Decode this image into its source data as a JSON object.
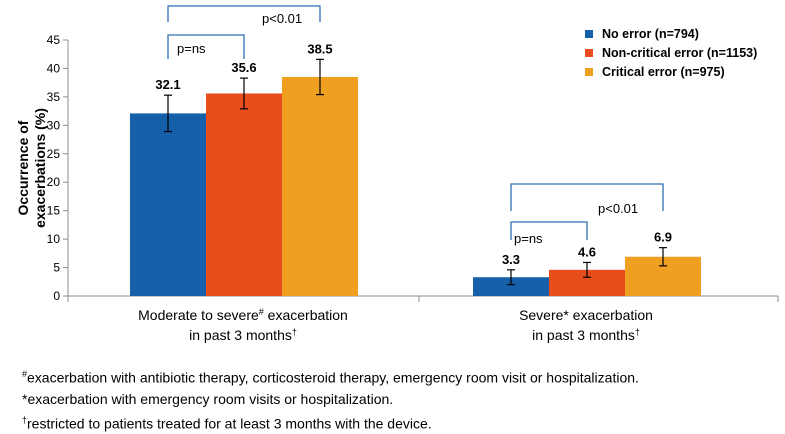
{
  "chart_data": {
    "type": "bar",
    "ylabel_lines": [
      "Occurrence of",
      "exacerbations (%)"
    ],
    "ylim": [
      0,
      45
    ],
    "yticks": [
      0,
      5,
      10,
      15,
      20,
      25,
      30,
      35,
      40,
      45
    ],
    "groups": [
      {
        "label_line1_pre": "Moderate to severe",
        "label_line1_sup": "#",
        "label_line1_post": " exacerbation",
        "label_line2": "in past 3 months",
        "label_line2_sup": "†"
      },
      {
        "label_line1_pre": "Severe* exacerbation",
        "label_line1_sup": "",
        "label_line1_post": "",
        "label_line2": "in past 3 months",
        "label_line2_sup": "†"
      }
    ],
    "series": [
      {
        "name": "No error (n=794)",
        "color": "#1560a8",
        "values": [
          32.1,
          3.3
        ],
        "labels": [
          "32.1",
          "3.3"
        ],
        "err": [
          3.2,
          1.3
        ]
      },
      {
        "name": "Non-critical error (n=1153)",
        "color": "#e84e1c",
        "values": [
          35.6,
          4.6
        ],
        "labels": [
          "35.6",
          "4.6"
        ],
        "err": [
          2.7,
          1.3
        ]
      },
      {
        "name": "Critical error (n=975)",
        "color": "#f0a020",
        "values": [
          38.5,
          6.9
        ],
        "labels": [
          "38.5",
          "6.9"
        ],
        "err": [
          3.1,
          1.6
        ]
      }
    ],
    "comparisons": [
      {
        "group": 0,
        "from": 0,
        "to": 1,
        "label": "p=ns"
      },
      {
        "group": 0,
        "from": 0,
        "to": 2,
        "label": "p<0.01"
      },
      {
        "group": 1,
        "from": 0,
        "to": 1,
        "label": "p=ns"
      },
      {
        "group": 1,
        "from": 0,
        "to": 2,
        "label": "p<0.01"
      }
    ],
    "legend_position": "top-right",
    "bracket_color": "#2f6fb3"
  },
  "footnotes": [
    {
      "sup": "#",
      "text": "exacerbation with antibiotic therapy, corticosteroid therapy, emergency room visit or hospitalization."
    },
    {
      "sup": "",
      "text": "*exacerbation with emergency room visits or hospitalization."
    },
    {
      "sup": "†",
      "text": "restricted to patients treated for at least 3 months with the device."
    }
  ]
}
